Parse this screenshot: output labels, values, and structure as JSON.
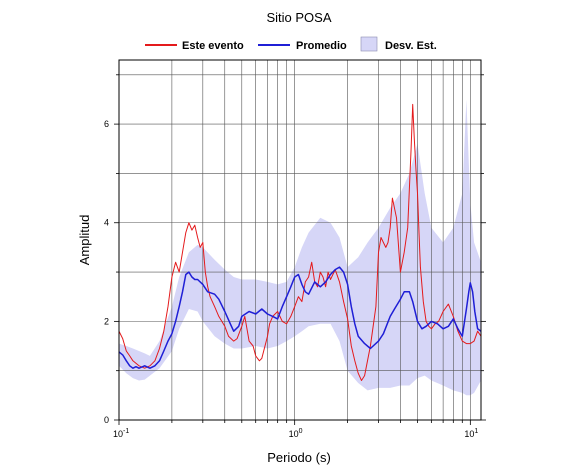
{
  "chart_data": {
    "type": "line",
    "title": "Sitio POSA",
    "xlabel": "Periodo (s)",
    "ylabel": "Amplitud",
    "xscale": "log",
    "xlim": [
      0.1,
      11.5
    ],
    "ylim": [
      0,
      7.3
    ],
    "yticks": [
      0,
      2,
      4,
      6
    ],
    "grid": true,
    "legend_position": "top",
    "x_ticks": [
      {
        "base": "10",
        "exp": "-1",
        "value": 0.1
      },
      {
        "base": "10",
        "exp": "0",
        "value": 1
      },
      {
        "base": "10",
        "exp": "1",
        "value": 10
      }
    ],
    "legend": [
      {
        "label": "Este evento",
        "kind": "line",
        "color": "#e41a1c"
      },
      {
        "label": "Promedio",
        "kind": "line",
        "color": "#1f1fd6"
      },
      {
        "label": "Desv. Est.",
        "kind": "band",
        "color": "#d6d6f7"
      }
    ],
    "band": {
      "name": "Desv. Est.",
      "color": "#d6d6f7",
      "x": [
        0.1,
        0.11,
        0.12,
        0.13,
        0.14,
        0.15,
        0.17,
        0.2,
        0.22,
        0.25,
        0.28,
        0.3,
        0.35,
        0.4,
        0.45,
        0.5,
        0.6,
        0.7,
        0.8,
        0.9,
        1.0,
        1.1,
        1.2,
        1.4,
        1.6,
        1.8,
        2.0,
        2.3,
        2.6,
        3.0,
        3.5,
        4.0,
        4.5,
        5.0,
        5.5,
        6.0,
        7.0,
        8.0,
        9.0,
        9.5,
        10.0,
        10.5,
        11.5
      ],
      "upper": [
        1.55,
        1.5,
        1.45,
        1.4,
        1.35,
        1.3,
        1.6,
        2.3,
        2.9,
        3.4,
        3.55,
        3.5,
        3.25,
        3.05,
        2.9,
        2.85,
        2.85,
        2.8,
        2.75,
        2.8,
        3.1,
        3.5,
        3.8,
        4.1,
        4.0,
        3.7,
        3.1,
        3.3,
        3.6,
        3.9,
        4.3,
        4.6,
        5.0,
        5.6,
        4.6,
        3.9,
        3.6,
        3.9,
        4.6,
        6.5,
        4.4,
        3.6,
        3.2
      ],
      "lower": [
        1.1,
        0.95,
        0.85,
        0.8,
        0.82,
        0.9,
        1.05,
        1.4,
        1.85,
        2.25,
        2.2,
        2.0,
        1.7,
        1.55,
        1.45,
        1.45,
        1.5,
        1.45,
        1.5,
        1.6,
        1.7,
        1.8,
        1.9,
        1.95,
        1.95,
        1.6,
        1.0,
        0.75,
        0.6,
        0.65,
        0.65,
        0.7,
        0.7,
        0.85,
        0.9,
        0.8,
        0.7,
        0.6,
        0.55,
        0.5,
        0.5,
        0.55,
        0.8
      ]
    },
    "series": [
      {
        "name": "Este evento",
        "color": "#e41a1c",
        "x": [
          0.1,
          0.105,
          0.11,
          0.115,
          0.12,
          0.13,
          0.14,
          0.15,
          0.16,
          0.17,
          0.18,
          0.19,
          0.2,
          0.21,
          0.22,
          0.23,
          0.24,
          0.25,
          0.26,
          0.27,
          0.28,
          0.29,
          0.3,
          0.31,
          0.32,
          0.33,
          0.35,
          0.37,
          0.4,
          0.42,
          0.45,
          0.47,
          0.5,
          0.52,
          0.55,
          0.58,
          0.6,
          0.63,
          0.65,
          0.7,
          0.72,
          0.75,
          0.8,
          0.85,
          0.9,
          0.95,
          1.0,
          1.05,
          1.1,
          1.15,
          1.2,
          1.25,
          1.3,
          1.35,
          1.4,
          1.45,
          1.5,
          1.55,
          1.6,
          1.7,
          1.8,
          1.9,
          2.0,
          2.1,
          2.2,
          2.3,
          2.4,
          2.5,
          2.7,
          2.9,
          3.0,
          3.1,
          3.2,
          3.3,
          3.4,
          3.5,
          3.6,
          3.8,
          4.0,
          4.1,
          4.2,
          4.4,
          4.6,
          4.7,
          4.8,
          4.9,
          5.0,
          5.1,
          5.2,
          5.4,
          5.6,
          5.8,
          6.0,
          6.3,
          6.6,
          7.0,
          7.5,
          8.0,
          8.5,
          9.0,
          9.5,
          10.0,
          10.5,
          11.0,
          11.5
        ],
        "values": [
          1.8,
          1.65,
          1.4,
          1.3,
          1.2,
          1.1,
          1.05,
          1.1,
          1.2,
          1.45,
          1.8,
          2.3,
          2.9,
          3.2,
          3.0,
          3.4,
          3.8,
          4.0,
          3.85,
          3.95,
          3.7,
          3.5,
          3.6,
          3.0,
          2.7,
          2.5,
          2.3,
          2.1,
          1.9,
          1.7,
          1.6,
          1.65,
          1.9,
          2.1,
          1.6,
          1.5,
          1.3,
          1.2,
          1.25,
          1.7,
          1.95,
          2.1,
          2.2,
          2.0,
          1.95,
          2.1,
          2.3,
          2.5,
          2.4,
          2.8,
          2.9,
          3.2,
          2.8,
          2.7,
          3.0,
          2.9,
          2.7,
          3.0,
          2.85,
          3.05,
          2.8,
          2.4,
          2.05,
          1.5,
          1.2,
          0.95,
          0.8,
          0.9,
          1.5,
          2.3,
          3.4,
          3.7,
          3.6,
          3.5,
          3.6,
          3.9,
          4.5,
          4.1,
          3.0,
          3.2,
          3.4,
          3.9,
          5.5,
          6.4,
          5.7,
          5.1,
          4.6,
          3.8,
          3.1,
          2.4,
          2.0,
          1.9,
          1.85,
          1.95,
          2.0,
          2.2,
          2.35,
          2.1,
          1.8,
          1.6,
          1.55,
          1.55,
          1.6,
          1.8,
          1.7
        ]
      },
      {
        "name": "Promedio",
        "color": "#1f1fd6",
        "x": [
          0.1,
          0.105,
          0.11,
          0.115,
          0.12,
          0.125,
          0.13,
          0.14,
          0.15,
          0.16,
          0.17,
          0.18,
          0.19,
          0.2,
          0.21,
          0.22,
          0.23,
          0.24,
          0.25,
          0.26,
          0.27,
          0.28,
          0.3,
          0.32,
          0.35,
          0.37,
          0.4,
          0.43,
          0.45,
          0.48,
          0.5,
          0.55,
          0.6,
          0.65,
          0.7,
          0.75,
          0.8,
          0.85,
          0.9,
          0.95,
          1.0,
          1.05,
          1.1,
          1.15,
          1.2,
          1.3,
          1.4,
          1.5,
          1.6,
          1.7,
          1.8,
          1.9,
          2.0,
          2.1,
          2.2,
          2.3,
          2.5,
          2.7,
          3.0,
          3.2,
          3.5,
          3.7,
          4.0,
          4.2,
          4.5,
          4.7,
          5.0,
          5.3,
          5.6,
          6.0,
          6.5,
          7.0,
          7.5,
          8.0,
          8.5,
          9.0,
          9.5,
          9.8,
          10.0,
          10.3,
          10.6,
          11.0,
          11.5
        ],
        "values": [
          1.38,
          1.32,
          1.2,
          1.1,
          1.05,
          1.08,
          1.05,
          1.1,
          1.05,
          1.1,
          1.2,
          1.4,
          1.6,
          1.75,
          2.0,
          2.3,
          2.6,
          2.95,
          3.0,
          2.9,
          2.85,
          2.85,
          2.75,
          2.6,
          2.55,
          2.45,
          2.2,
          1.95,
          1.8,
          1.9,
          2.1,
          2.2,
          2.15,
          2.25,
          2.15,
          2.1,
          2.05,
          2.3,
          2.5,
          2.7,
          2.9,
          2.95,
          2.75,
          2.6,
          2.55,
          2.8,
          2.7,
          2.8,
          2.95,
          3.05,
          3.1,
          3.0,
          2.75,
          2.3,
          1.95,
          1.7,
          1.55,
          1.45,
          1.6,
          1.75,
          2.1,
          2.25,
          2.45,
          2.6,
          2.6,
          2.4,
          2.0,
          1.85,
          1.9,
          2.0,
          1.95,
          1.85,
          1.9,
          2.05,
          1.85,
          1.7,
          2.25,
          2.6,
          2.78,
          2.6,
          2.2,
          1.85,
          1.8
        ]
      }
    ]
  }
}
